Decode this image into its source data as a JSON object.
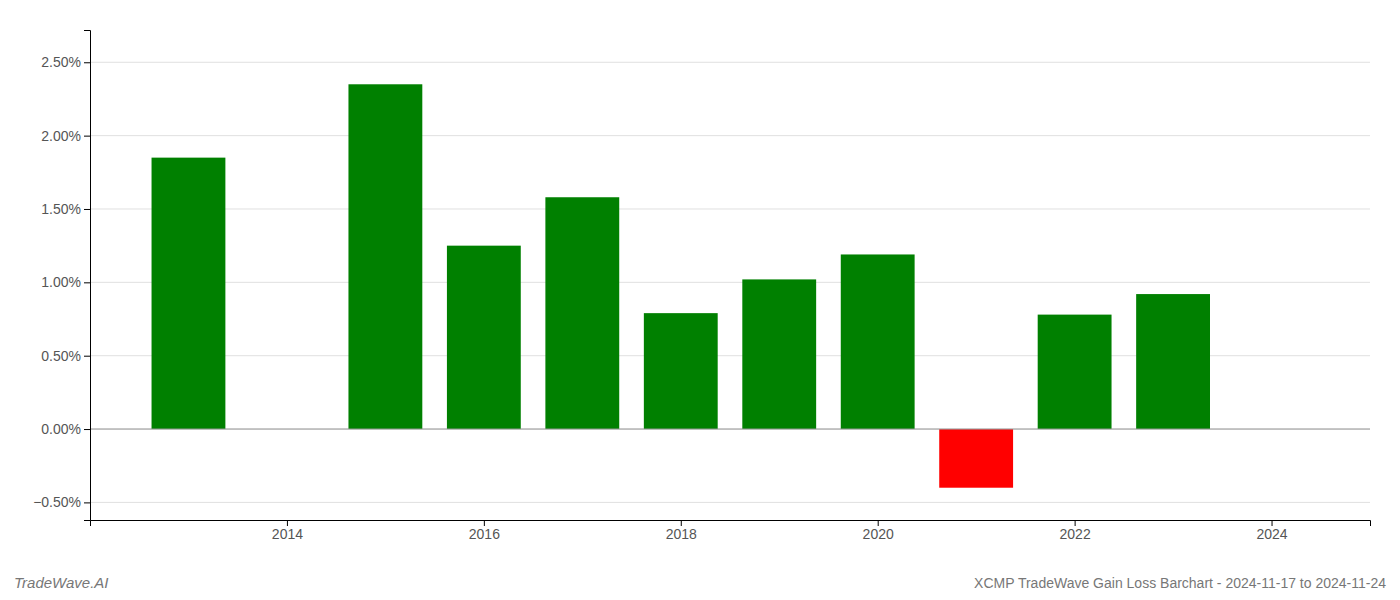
{
  "chart_data": {
    "type": "bar",
    "title": "XCMP TradeWave Gain Loss Barchart - 2024-11-17 to 2024-11-24",
    "annotations": [
      "TradeWave.AI"
    ],
    "x": [
      2013,
      2015,
      2016,
      2017,
      2018,
      2019,
      2020,
      2021,
      2022,
      2023
    ],
    "values": [
      1.85,
      2.35,
      1.25,
      1.58,
      0.79,
      1.02,
      1.19,
      -0.4,
      0.78,
      0.92
    ],
    "colors": [
      "#008000",
      "#008000",
      "#008000",
      "#008000",
      "#008000",
      "#008000",
      "#008000",
      "#ff0000",
      "#008000",
      "#008000"
    ],
    "xlim": [
      2012.0,
      2025.0
    ],
    "xticks": [
      2014,
      2016,
      2018,
      2020,
      2022,
      2024
    ],
    "ylim": [
      -0.62,
      2.72
    ],
    "yticks": [
      {
        "value": -0.5,
        "label": "−0.50%"
      },
      {
        "value": 0.0,
        "label": "0.00%"
      },
      {
        "value": 0.5,
        "label": "0.50%"
      },
      {
        "value": 1.0,
        "label": "1.00%"
      },
      {
        "value": 1.5,
        "label": "1.50%"
      },
      {
        "value": 2.0,
        "label": "2.00%"
      },
      {
        "value": 2.5,
        "label": "2.50%"
      }
    ],
    "grid": true
  }
}
